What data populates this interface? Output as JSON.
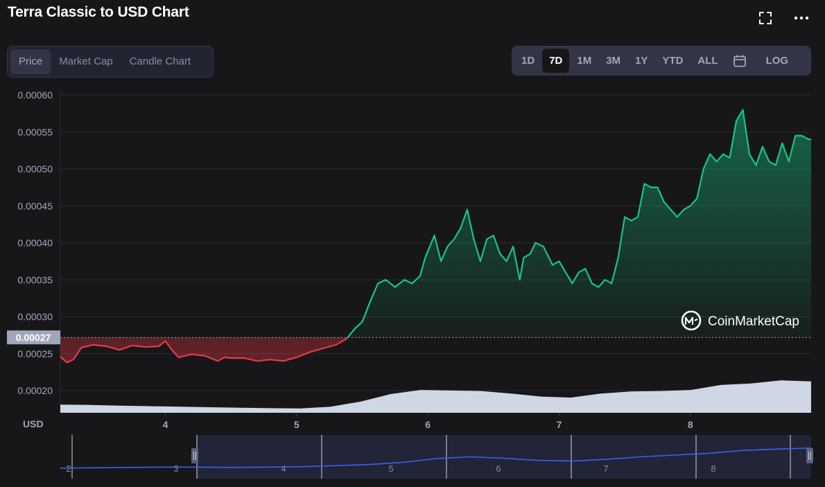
{
  "header": {
    "title": "Terra Classic to USD Chart",
    "fullscreen_icon": "fullscreen-icon",
    "more_icon": "more-dots-icon"
  },
  "view_tabs": [
    {
      "label": "Price",
      "active": true
    },
    {
      "label": "Market Cap",
      "active": false
    },
    {
      "label": "Candle Chart",
      "active": false
    }
  ],
  "range_tabs": [
    {
      "label": "1D",
      "active": false
    },
    {
      "label": "7D",
      "active": true
    },
    {
      "label": "1M",
      "active": false
    },
    {
      "label": "3M",
      "active": false
    },
    {
      "label": "1Y",
      "active": false
    },
    {
      "label": "YTD",
      "active": false
    },
    {
      "label": "ALL",
      "active": false
    }
  ],
  "calendar_icon": "calendar-icon",
  "log_label": "LOG",
  "watermark": "CoinMarketCap",
  "colors": {
    "up": "#16c784",
    "down": "#ea3943",
    "volume": "#cfd6e4",
    "navigator_line": "#3861fb",
    "background": "#17171a"
  },
  "chart_data": {
    "type": "line",
    "y_unit_label": "USD",
    "ylim": [
      0.00018,
      0.0006
    ],
    "xlim": [
      3.2,
      8.92
    ],
    "yticks": [
      "0.00060",
      "0.00055",
      "0.00050",
      "0.00045",
      "0.00040",
      "0.00035",
      "0.00030",
      "0.00025",
      "0.00020"
    ],
    "xticks": [
      "4",
      "5",
      "6",
      "7",
      "8"
    ],
    "baseline": {
      "value": 0.000272,
      "label": "0.00027"
    },
    "grid": true,
    "series": [
      {
        "x": [
          3.2,
          3.25,
          3.3,
          3.36,
          3.45,
          3.55,
          3.65,
          3.75,
          3.85,
          3.95,
          4.0,
          4.05,
          4.1,
          4.2,
          4.3,
          4.4,
          4.45,
          4.5,
          4.6,
          4.7,
          4.8,
          4.9,
          5.0,
          5.1,
          5.2,
          5.3,
          5.38,
          5.45,
          5.5,
          5.56,
          5.62,
          5.68,
          5.75,
          5.82,
          5.88,
          5.94,
          5.98,
          6.05,
          6.1,
          6.15,
          6.2,
          6.25,
          6.3,
          6.35,
          6.4,
          6.45,
          6.5,
          6.55,
          6.6,
          6.65,
          6.7,
          6.73,
          6.78,
          6.82,
          6.88,
          6.95,
          7.0,
          7.05,
          7.1,
          7.15,
          7.2,
          7.25,
          7.3,
          7.35,
          7.4,
          7.45,
          7.5,
          7.55,
          7.6,
          7.65,
          7.7,
          7.75,
          7.8,
          7.85,
          7.9,
          7.95,
          8.0,
          8.05,
          8.1,
          8.15,
          8.2,
          8.25,
          8.3,
          8.35,
          8.4,
          8.45,
          8.5,
          8.55,
          8.6,
          8.65,
          8.7,
          8.75,
          8.8,
          8.85,
          8.9,
          8.92
        ],
        "y": [
          0.000246,
          0.000238,
          0.000242,
          0.000258,
          0.000262,
          0.00026,
          0.000255,
          0.000261,
          0.000259,
          0.00026,
          0.000267,
          0.000255,
          0.000245,
          0.000249,
          0.000247,
          0.00024,
          0.000245,
          0.000244,
          0.000244,
          0.00024,
          0.000242,
          0.00024,
          0.000245,
          0.000252,
          0.000257,
          0.000262,
          0.00027,
          0.000285,
          0.000293,
          0.00032,
          0.000345,
          0.00035,
          0.00034,
          0.00035,
          0.000345,
          0.000355,
          0.00038,
          0.00041,
          0.000375,
          0.000395,
          0.000405,
          0.00042,
          0.000445,
          0.000405,
          0.000375,
          0.000405,
          0.00041,
          0.000385,
          0.000375,
          0.000395,
          0.00035,
          0.00038,
          0.000385,
          0.0004,
          0.000395,
          0.00037,
          0.000375,
          0.00036,
          0.000345,
          0.00036,
          0.000365,
          0.000345,
          0.00034,
          0.00035,
          0.000345,
          0.00038,
          0.000435,
          0.00043,
          0.000435,
          0.00048,
          0.000475,
          0.000475,
          0.000455,
          0.000445,
          0.000435,
          0.000445,
          0.00045,
          0.00046,
          0.0005,
          0.00052,
          0.00051,
          0.00052,
          0.000515,
          0.000565,
          0.00058,
          0.00052,
          0.000505,
          0.00053,
          0.00051,
          0.000505,
          0.000535,
          0.00051,
          0.000545,
          0.000545,
          0.00054,
          0.00054
        ]
      }
    ],
    "volume": [
      0.16,
      0.155,
      0.14,
      0.13,
      0.12,
      0.11,
      0.1,
      0.09,
      0.085,
      0.12,
      0.22,
      0.37,
      0.45,
      0.44,
      0.43,
      0.38,
      0.32,
      0.3,
      0.38,
      0.42,
      0.43,
      0.45,
      0.55,
      0.58,
      0.64,
      0.62
    ],
    "navigator": {
      "labels": [
        "2",
        "3",
        "4",
        "5",
        "6",
        "7",
        "8"
      ],
      "line": [
        0.18,
        0.19,
        0.2,
        0.21,
        0.21,
        0.2,
        0.21,
        0.22,
        0.25,
        0.28,
        0.34,
        0.45,
        0.5,
        0.46,
        0.4,
        0.38,
        0.43,
        0.5,
        0.55,
        0.6,
        0.68,
        0.72,
        0.75
      ]
    }
  }
}
